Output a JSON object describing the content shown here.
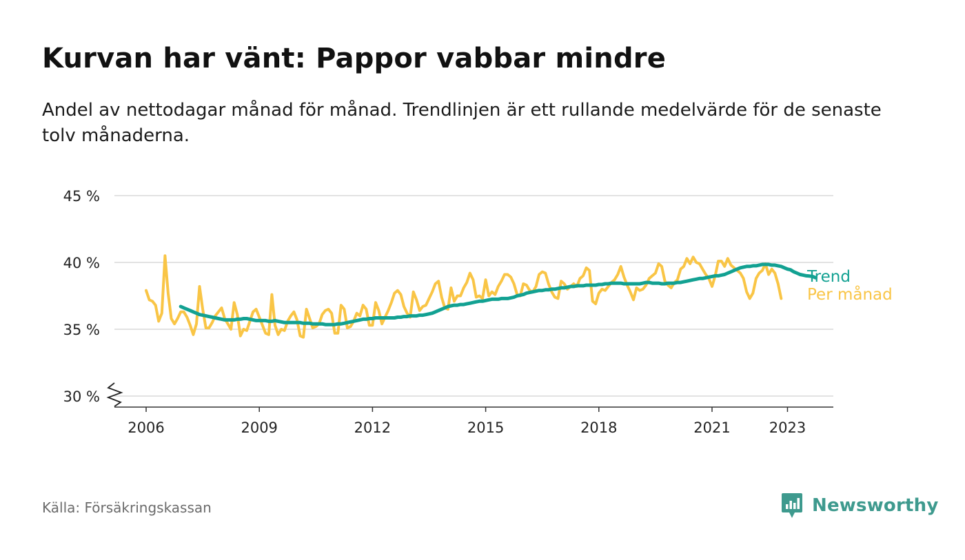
{
  "header": {
    "title": "Kurvan har vänt: Pappor vabbar mindre",
    "subtitle": "Andel av nettodagar månad för månad. Trendlinjen är ett rullande medelvärde för de senaste tolv månaderna."
  },
  "colors": {
    "monthly": "#F9C546",
    "trend": "#12A192",
    "grid": "#d9d9d9",
    "axis": "#333333",
    "brand": "#3E9A8E"
  },
  "footer": {
    "source": "Källa: Försäkringskassan",
    "brand": "Newsworthy",
    "brand_icon": "newsworthy-logo-icon"
  },
  "chart_data": {
    "type": "line",
    "title": "Kurvan har vänt: Pappor vabbar mindre",
    "xlabel": "",
    "ylabel": "",
    "x_unit": "month",
    "x_start": "2006-01",
    "x_end": "2023-05",
    "ylim": [
      30,
      45
    ],
    "y_axis_broken": true,
    "y_ticks": [
      30,
      35,
      40,
      45
    ],
    "y_tick_labels": [
      "30 %",
      "35 %",
      "40 %",
      "45 %"
    ],
    "x_ticks": [
      2006,
      2009,
      2012,
      2015,
      2018,
      2021,
      2023
    ],
    "x_tick_labels": [
      "2006",
      "2009",
      "2012",
      "2015",
      "2018",
      "2021",
      "2023"
    ],
    "grid": true,
    "legend": "end-of-line labels, right",
    "series": [
      {
        "name": "Per månad",
        "start": "2006-01",
        "values": [
          37.9,
          37.2,
          37.1,
          36.8,
          35.6,
          36.2,
          40.5,
          37.7,
          35.8,
          35.4,
          35.8,
          36.3,
          36.3,
          35.9,
          35.3,
          34.6,
          35.4,
          38.2,
          36.5,
          35.1,
          35.1,
          35.5,
          36.0,
          36.3,
          36.6,
          35.8,
          35.4,
          35.0,
          37.0,
          36.1,
          34.5,
          35.0,
          34.9,
          35.6,
          36.3,
          36.5,
          35.9,
          35.3,
          34.7,
          34.6,
          37.6,
          35.3,
          34.6,
          35.0,
          34.9,
          35.6,
          36.0,
          36.3,
          35.7,
          34.5,
          34.4,
          36.5,
          35.8,
          35.1,
          35.2,
          35.4,
          36.1,
          36.4,
          36.5,
          36.2,
          34.7,
          34.7,
          36.8,
          36.5,
          35.1,
          35.2,
          35.6,
          36.2,
          36.0,
          36.8,
          36.5,
          35.3,
          35.3,
          37.0,
          36.4,
          35.4,
          35.9,
          36.4,
          37.0,
          37.7,
          37.9,
          37.6,
          36.7,
          36.2,
          35.9,
          37.8,
          37.2,
          36.4,
          36.7,
          36.8,
          37.3,
          37.8,
          38.4,
          38.6,
          37.4,
          36.6,
          36.5,
          38.1,
          37.1,
          37.5,
          37.5,
          38.1,
          38.5,
          39.2,
          38.7,
          37.4,
          37.5,
          37.3,
          38.7,
          37.5,
          37.8,
          37.6,
          38.2,
          38.6,
          39.1,
          39.1,
          38.9,
          38.4,
          37.6,
          37.5,
          38.4,
          38.3,
          37.9,
          37.8,
          38.2,
          39.1,
          39.3,
          39.2,
          38.4,
          37.8,
          37.4,
          37.3,
          38.6,
          38.4,
          38.0,
          38.2,
          38.4,
          38.2,
          38.8,
          39.0,
          39.6,
          39.4,
          37.1,
          36.9,
          37.7,
          38.0,
          37.9,
          38.2,
          38.5,
          38.7,
          39.1,
          39.7,
          38.9,
          38.3,
          37.8,
          37.2,
          38.1,
          37.9,
          38.0,
          38.3,
          38.8,
          39.0,
          39.2,
          39.9,
          39.7,
          38.6,
          38.3,
          38.1,
          38.5,
          38.7,
          39.5,
          39.7,
          40.3,
          39.9,
          40.4,
          40.0,
          39.9,
          39.5,
          39.1,
          38.8,
          38.2,
          39.0,
          40.1,
          40.1,
          39.7,
          40.3,
          39.8,
          39.6,
          39.4,
          39.2,
          38.8,
          37.8,
          37.3,
          37.7,
          38.8,
          39.2,
          39.4,
          39.9,
          39.1,
          39.5,
          39.2,
          38.4,
          37.3
        ],
        "color": "#F9C546"
      },
      {
        "name": "Trend",
        "start": "2006-12",
        "values": [
          36.7,
          36.6,
          36.5,
          36.4,
          36.3,
          36.2,
          36.1,
          36.05,
          36.0,
          35.95,
          35.9,
          35.85,
          35.8,
          35.75,
          35.7,
          35.7,
          35.7,
          35.7,
          35.75,
          35.75,
          35.8,
          35.8,
          35.75,
          35.7,
          35.65,
          35.65,
          35.65,
          35.65,
          35.6,
          35.6,
          35.65,
          35.6,
          35.55,
          35.5,
          35.5,
          35.5,
          35.5,
          35.5,
          35.5,
          35.45,
          35.45,
          35.45,
          35.4,
          35.4,
          35.4,
          35.4,
          35.35,
          35.35,
          35.35,
          35.35,
          35.4,
          35.4,
          35.45,
          35.5,
          35.55,
          35.6,
          35.65,
          35.7,
          35.75,
          35.75,
          35.8,
          35.8,
          35.85,
          35.85,
          35.85,
          35.85,
          35.85,
          35.85,
          35.85,
          35.9,
          35.9,
          35.95,
          35.95,
          36.0,
          36.0,
          36.0,
          36.05,
          36.05,
          36.1,
          36.15,
          36.2,
          36.3,
          36.4,
          36.5,
          36.6,
          36.7,
          36.75,
          36.8,
          36.8,
          36.85,
          36.85,
          36.9,
          36.95,
          37.0,
          37.05,
          37.1,
          37.1,
          37.15,
          37.2,
          37.25,
          37.25,
          37.25,
          37.3,
          37.3,
          37.3,
          37.35,
          37.4,
          37.5,
          37.55,
          37.6,
          37.7,
          37.75,
          37.8,
          37.85,
          37.9,
          37.9,
          37.95,
          37.95,
          38.0,
          38.0,
          38.05,
          38.1,
          38.1,
          38.15,
          38.2,
          38.2,
          38.25,
          38.25,
          38.25,
          38.3,
          38.3,
          38.3,
          38.3,
          38.35,
          38.35,
          38.4,
          38.4,
          38.45,
          38.45,
          38.45,
          38.45,
          38.4,
          38.4,
          38.4,
          38.4,
          38.4,
          38.4,
          38.45,
          38.5,
          38.5,
          38.45,
          38.45,
          38.45,
          38.4,
          38.4,
          38.45,
          38.45,
          38.45,
          38.5,
          38.5,
          38.55,
          38.6,
          38.65,
          38.7,
          38.75,
          38.8,
          38.8,
          38.85,
          38.9,
          38.95,
          39.0,
          39.0,
          39.05,
          39.1,
          39.2,
          39.3,
          39.4,
          39.5,
          39.6,
          39.65,
          39.7,
          39.7,
          39.75,
          39.75,
          39.8,
          39.85,
          39.85,
          39.85,
          39.8,
          39.8,
          39.75,
          39.7,
          39.6,
          39.5,
          39.45,
          39.3,
          39.2,
          39.1,
          39.05,
          39.0,
          38.98,
          38.95,
          38.85
        ]
      }
    ]
  }
}
